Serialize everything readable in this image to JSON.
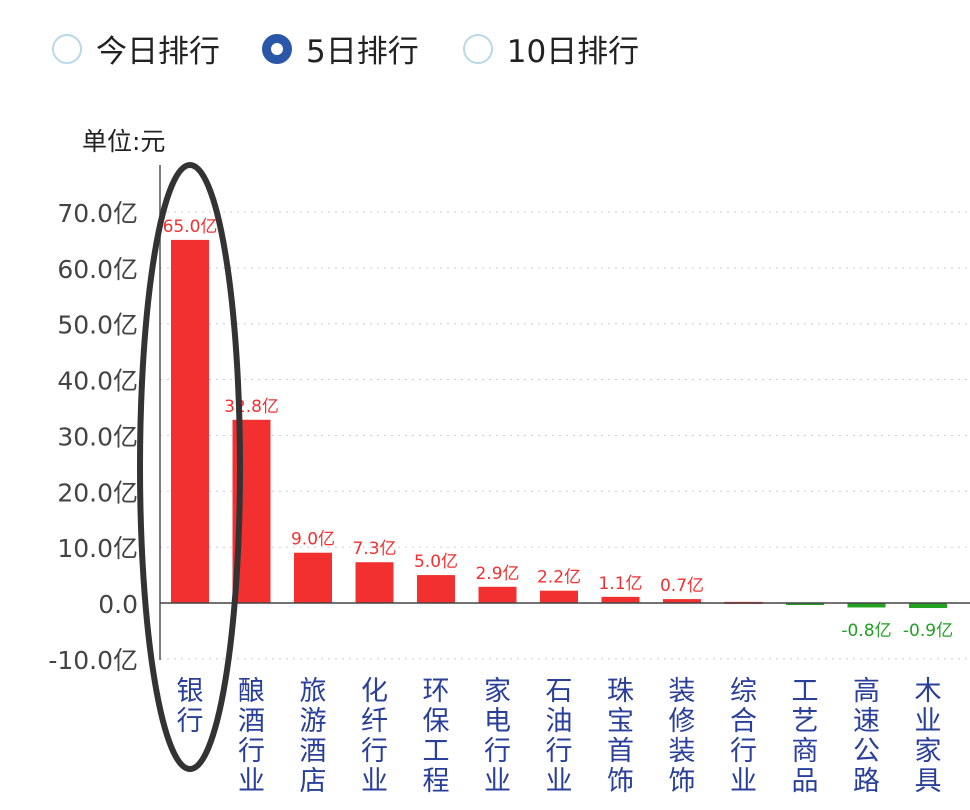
{
  "radios": [
    {
      "label": "今日排行",
      "selected": false
    },
    {
      "label": "5日排行",
      "selected": true
    },
    {
      "label": "10日排行",
      "selected": false
    }
  ],
  "chart_data": {
    "type": "bar",
    "unit_label": "单位:元",
    "categories": [
      "银行",
      "酿酒行业",
      "旅游酒店",
      "化纤行业",
      "环保工程",
      "家电行业",
      "石油行业",
      "珠宝首饰",
      "装修装饰",
      "综合行业",
      "工艺商品",
      "高速公路",
      "木业家具"
    ],
    "values": [
      65.0,
      32.8,
      9.0,
      7.3,
      5.0,
      2.9,
      2.2,
      1.1,
      0.7,
      0.2,
      -0.1,
      -0.8,
      -0.9
    ],
    "data_labels": [
      "65.0亿",
      "32.8亿",
      "9.0亿",
      "7.3亿",
      "5.0亿",
      "2.9亿",
      "2.2亿",
      "1.1亿",
      "0.7亿",
      "",
      "",
      "-0.8亿",
      "-0.9亿"
    ],
    "yticks": [
      "-10.0亿",
      "0.0",
      "10.0亿",
      "20.0亿",
      "30.0亿",
      "40.0亿",
      "50.0亿",
      "60.0亿",
      "70.0亿"
    ],
    "ylim": [
      -10,
      70
    ],
    "positive_color": "#f23030",
    "negative_color": "#22a022",
    "grid": true
  }
}
